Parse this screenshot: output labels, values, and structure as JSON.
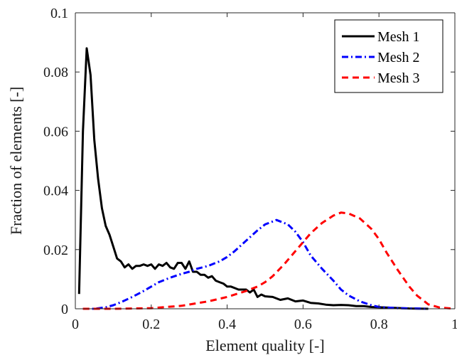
{
  "chart_data": {
    "type": "line",
    "title": "",
    "xlabel": "Element quality [-]",
    "ylabel": "Fraction of elements [-]",
    "xlim": [
      0,
      1
    ],
    "ylim": [
      0,
      0.1
    ],
    "xticks": [
      0,
      0.2,
      0.4,
      0.6,
      0.8,
      1
    ],
    "xtick_labels": [
      "0",
      "0.2",
      "0.4",
      "0.6",
      "0.8",
      "1"
    ],
    "yticks": [
      0,
      0.02,
      0.04,
      0.06,
      0.08,
      0.1
    ],
    "ytick_labels": [
      "0",
      "0.02",
      "0.04",
      "0.06",
      "0.08",
      "0.1"
    ],
    "grid": false,
    "legend_position": "top-right",
    "series": [
      {
        "name": "Mesh 1",
        "color": "#000000",
        "dash": "solid",
        "x": [
          0.01,
          0.02,
          0.03,
          0.04,
          0.05,
          0.06,
          0.07,
          0.08,
          0.09,
          0.1,
          0.11,
          0.12,
          0.13,
          0.14,
          0.15,
          0.16,
          0.17,
          0.18,
          0.19,
          0.2,
          0.21,
          0.22,
          0.23,
          0.24,
          0.25,
          0.26,
          0.27,
          0.28,
          0.29,
          0.3,
          0.31,
          0.32,
          0.33,
          0.34,
          0.35,
          0.36,
          0.37,
          0.38,
          0.39,
          0.4,
          0.41,
          0.42,
          0.43,
          0.44,
          0.45,
          0.46,
          0.47,
          0.48,
          0.49,
          0.5,
          0.52,
          0.54,
          0.56,
          0.58,
          0.6,
          0.62,
          0.64,
          0.66,
          0.68,
          0.7,
          0.72,
          0.74,
          0.76,
          0.78,
          0.8,
          0.84,
          0.88,
          0.93
        ],
        "y": [
          0.005,
          0.06,
          0.088,
          0.079,
          0.057,
          0.044,
          0.034,
          0.028,
          0.025,
          0.021,
          0.017,
          0.016,
          0.014,
          0.015,
          0.0135,
          0.0145,
          0.0145,
          0.015,
          0.0145,
          0.015,
          0.0135,
          0.015,
          0.0145,
          0.0155,
          0.014,
          0.0135,
          0.0155,
          0.0155,
          0.0135,
          0.016,
          0.0125,
          0.0125,
          0.0115,
          0.0115,
          0.0105,
          0.011,
          0.0095,
          0.009,
          0.0085,
          0.0075,
          0.0075,
          0.007,
          0.0065,
          0.0065,
          0.0065,
          0.0055,
          0.0065,
          0.004,
          0.0048,
          0.0042,
          0.004,
          0.003,
          0.0035,
          0.0025,
          0.0028,
          0.002,
          0.0018,
          0.0014,
          0.0012,
          0.0013,
          0.0012,
          0.0009,
          0.0009,
          0.0006,
          0.0005,
          0.0003,
          0.0001,
          0.0
        ]
      },
      {
        "name": "Mesh 2",
        "color": "#0000ff",
        "dash": "dashdot",
        "x": [
          0.02,
          0.05,
          0.08,
          0.1,
          0.12,
          0.15,
          0.18,
          0.2,
          0.22,
          0.25,
          0.28,
          0.3,
          0.32,
          0.35,
          0.38,
          0.4,
          0.42,
          0.45,
          0.48,
          0.5,
          0.52,
          0.53,
          0.54,
          0.56,
          0.58,
          0.6,
          0.62,
          0.65,
          0.68,
          0.7,
          0.72,
          0.75,
          0.78,
          0.8,
          0.85,
          0.9,
          0.93
        ],
        "y": [
          0.0,
          0.0,
          0.0005,
          0.0012,
          0.0022,
          0.004,
          0.006,
          0.0075,
          0.009,
          0.0105,
          0.0118,
          0.0125,
          0.0135,
          0.0145,
          0.016,
          0.0175,
          0.0195,
          0.023,
          0.0265,
          0.0285,
          0.0295,
          0.03,
          0.0295,
          0.0285,
          0.026,
          0.0225,
          0.018,
          0.0135,
          0.0095,
          0.0065,
          0.0045,
          0.0025,
          0.0012,
          0.0006,
          0.0002,
          0.0001,
          0.0
        ]
      },
      {
        "name": "Mesh 3",
        "color": "#ff0000",
        "dash": "dashed",
        "x": [
          0.02,
          0.1,
          0.2,
          0.28,
          0.35,
          0.4,
          0.45,
          0.48,
          0.5,
          0.52,
          0.55,
          0.58,
          0.6,
          0.62,
          0.65,
          0.68,
          0.7,
          0.72,
          0.75,
          0.78,
          0.8,
          0.82,
          0.85,
          0.88,
          0.9,
          0.93,
          0.96,
          1.0
        ],
        "y": [
          0.0,
          0.0,
          0.0002,
          0.001,
          0.0025,
          0.004,
          0.006,
          0.0075,
          0.009,
          0.011,
          0.015,
          0.0195,
          0.0225,
          0.0255,
          0.029,
          0.0315,
          0.0325,
          0.0322,
          0.0305,
          0.027,
          0.0235,
          0.019,
          0.013,
          0.0075,
          0.0045,
          0.0015,
          0.0004,
          0.0
        ]
      }
    ]
  }
}
